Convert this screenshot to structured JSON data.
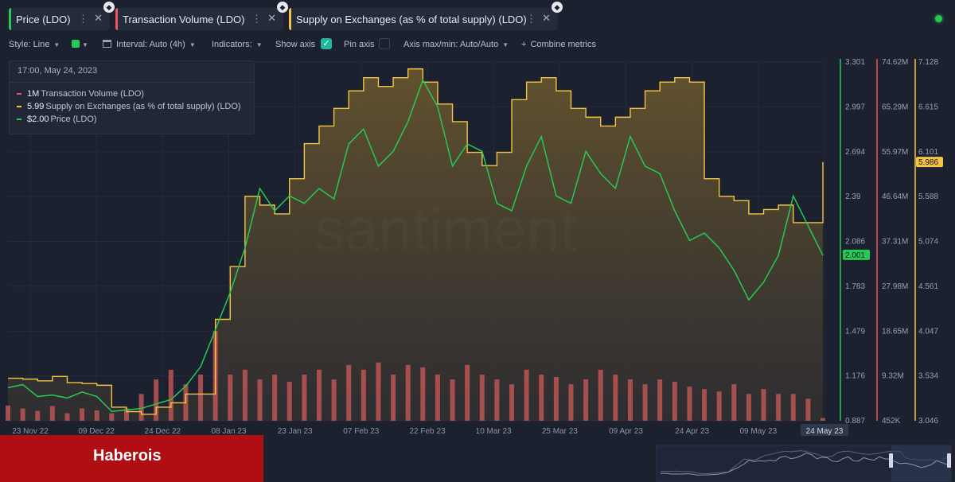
{
  "tabs": [
    {
      "label": "Price (LDO)",
      "color": "#26c953",
      "icon": "ethereum-icon"
    },
    {
      "label": "Transaction Volume (LDO)",
      "color": "#f2545b",
      "icon": "ethereum-icon"
    },
    {
      "label": "Supply on Exchanges (as % of total supply) (LDO)",
      "color": "#f5c542",
      "icon": "ethereum-icon"
    }
  ],
  "toolbar": {
    "style": "Style: Line",
    "interval": "Interval: Auto (4h)",
    "indicators": "Indicators:",
    "show_axis": "Show axis",
    "pin_axis": "Pin axis",
    "axis_maxmin": "Axis max/min: Auto/Auto",
    "combine": "Combine metrics",
    "show_axis_checked": true,
    "pin_axis_checked": false
  },
  "tooltip": {
    "timestamp": "17:00, May 24, 2023",
    "rows": [
      {
        "value": "1M",
        "label": "Transaction Volume (LDO)",
        "color": "#f2545b"
      },
      {
        "value": "5.99",
        "label": "Supply on Exchanges (as % of total supply) (LDO)",
        "color": "#f5c542"
      },
      {
        "value": "$2.00",
        "label": "Price (LDO)",
        "color": "#26c953"
      }
    ]
  },
  "watermark": "santiment",
  "brand": "Haberois",
  "chart_data": {
    "type": "line",
    "x": [
      "Nov 20",
      "Nov 23",
      "Nov 27",
      "Dec 01",
      "Dec 05",
      "Dec 09",
      "Dec 13",
      "Dec 17",
      "Dec 20",
      "Dec 24",
      "Dec 28",
      "Jan 01",
      "Jan 04",
      "Jan 07",
      "Jan 09",
      "Jan 11",
      "Jan 14",
      "Jan 18",
      "Jan 22",
      "Jan 26",
      "Jan 30",
      "Feb 02",
      "Feb 05",
      "Feb 07",
      "Feb 10",
      "Feb 13",
      "Feb 16",
      "Feb 19",
      "Feb 22",
      "Feb 25",
      "Feb 27",
      "Mar 02",
      "Mar 05",
      "Mar 08",
      "Mar 11",
      "Mar 14",
      "Mar 18",
      "Mar 22",
      "Mar 26",
      "Mar 30",
      "Apr 03",
      "Apr 06",
      "Apr 10",
      "Apr 14",
      "Apr 18",
      "Apr 22",
      "Apr 26",
      "Apr 30",
      "May 03",
      "May 06",
      "May 09",
      "May 11",
      "May 14",
      "May 17",
      "May 20",
      "May 24"
    ],
    "x_ticks": [
      "23 Nov 22",
      "09 Dec 22",
      "24 Dec 22",
      "08 Jan 23",
      "23 Jan 23",
      "07 Feb 23",
      "22 Feb 23",
      "10 Mar 23",
      "25 Mar 23",
      "09 Apr 23",
      "24 Apr 23",
      "09 May 23",
      "24 May 23"
    ],
    "series": [
      {
        "name": "Price (LDO)",
        "color": "#26c953",
        "axis": "price",
        "values": [
          1.11,
          1.13,
          1.05,
          1.06,
          1.04,
          1.08,
          1.05,
          0.95,
          0.96,
          0.97,
          1.0,
          1.03,
          1.12,
          1.25,
          1.5,
          1.75,
          2.05,
          2.45,
          2.3,
          2.4,
          2.35,
          2.45,
          2.38,
          2.75,
          2.85,
          2.6,
          2.7,
          2.9,
          3.18,
          3.0,
          2.6,
          2.75,
          2.7,
          2.35,
          2.3,
          2.6,
          2.8,
          2.4,
          2.35,
          2.7,
          2.55,
          2.45,
          2.8,
          2.6,
          2.55,
          2.3,
          2.1,
          2.15,
          2.05,
          1.9,
          1.7,
          1.82,
          2.0,
          2.4,
          2.2,
          2.0
        ]
      },
      {
        "name": "Supply on Exchanges (as % of total supply) (LDO)",
        "color": "#f5c542",
        "axis": "supply",
        "values": [
          3.53,
          3.52,
          3.5,
          3.55,
          3.48,
          3.47,
          3.45,
          3.2,
          3.15,
          3.12,
          3.2,
          3.25,
          3.35,
          3.35,
          4.2,
          4.8,
          5.6,
          5.5,
          5.4,
          5.8,
          6.2,
          6.4,
          6.6,
          6.8,
          6.95,
          6.85,
          6.95,
          7.05,
          6.9,
          6.65,
          6.45,
          6.1,
          5.95,
          6.1,
          6.7,
          6.9,
          6.95,
          6.8,
          6.6,
          6.5,
          6.4,
          6.5,
          6.6,
          6.8,
          6.9,
          6.95,
          6.9,
          5.8,
          5.6,
          5.55,
          5.4,
          5.45,
          5.5,
          5.3,
          5.3,
          5.99
        ]
      }
    ],
    "volume": {
      "name": "Transaction Volume (LDO)",
      "color": "#c45757",
      "axis": "volume",
      "values": [
        3.6,
        3.0,
        2.5,
        3.5,
        2.0,
        3.0,
        2.6,
        2.0,
        3.0,
        6.0,
        9.0,
        11.0,
        8.0,
        10.0,
        19.0,
        10.0,
        11.0,
        9.0,
        10.0,
        8.5,
        10.0,
        11.0,
        9.0,
        12.0,
        11.0,
        12.5,
        10.0,
        12.0,
        11.5,
        10.0,
        9.0,
        12.0,
        10.0,
        9.0,
        8.0,
        11.0,
        10.0,
        9.5,
        8.0,
        9.0,
        11.0,
        10.0,
        9.0,
        8.0,
        9.0,
        8.5,
        7.5,
        7.0,
        6.5,
        8.0,
        6.0,
        7.0,
        6.0,
        6.0,
        5.0,
        1.0
      ]
    },
    "axes": [
      {
        "id": "price",
        "color": "#26c953",
        "ticks": [
          "3.301",
          "2.997",
          "2.694",
          "2.39",
          "2.086",
          "1.783",
          "1.479",
          "1.176",
          "0.887"
        ],
        "range": [
          0.887,
          3.301
        ],
        "current": "2.001"
      },
      {
        "id": "volume",
        "color": "#f2545b",
        "ticks": [
          "74.62M",
          "65.29M",
          "55.97M",
          "46.64M",
          "37.31M",
          "27.98M",
          "18.65M",
          "9.32M",
          "452K"
        ],
        "range": [
          0.452,
          74.62
        ],
        "unit": "M"
      },
      {
        "id": "supply",
        "color": "#f5c542",
        "ticks": [
          "7.128",
          "6.615",
          "6.101",
          "5.588",
          "5.074",
          "4.561",
          "4.047",
          "3.534",
          "3.046"
        ],
        "range": [
          3.046,
          7.128
        ],
        "current": "5.986"
      }
    ],
    "highlighted_x": "24 May 23"
  }
}
